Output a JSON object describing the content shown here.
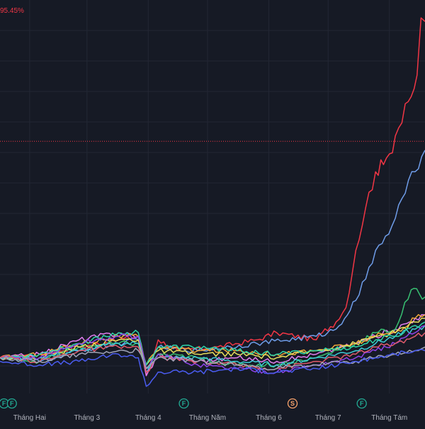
{
  "header": {
    "value_label": "95.45%"
  },
  "colors": {
    "background": "#161a25",
    "grid": "#232734",
    "reference_line": "#f23645",
    "axis_text": "#b2b5be",
    "event_green": "#22ab94",
    "event_orange": "#f7a26b"
  },
  "chart_data": {
    "type": "line",
    "title": "",
    "xlabel": "",
    "ylabel": "",
    "y_unit": "%",
    "grid": true,
    "ylim": [
      -10,
      100
    ],
    "reference_line_value": 60.5,
    "xaxis": {
      "range": [
        0,
        215
      ],
      "tick_labels": [
        {
          "label": "Tháng Hai",
          "x": 15
        },
        {
          "label": "Tháng 3",
          "x": 44
        },
        {
          "label": "Tháng 4",
          "x": 75
        },
        {
          "label": "Tháng Năm",
          "x": 105
        },
        {
          "label": "Tháng 6",
          "x": 136
        },
        {
          "label": "Tháng 7",
          "x": 166
        },
        {
          "label": "Tháng Tám",
          "x": 197
        }
      ]
    },
    "events": [
      {
        "label": "F",
        "x": 2,
        "color": "green"
      },
      {
        "label": "F",
        "x": 6,
        "color": "green"
      },
      {
        "label": "F",
        "x": 93,
        "color": "green"
      },
      {
        "label": "S",
        "x": 148,
        "color": "orange"
      },
      {
        "label": "F",
        "x": 183,
        "color": "green"
      }
    ],
    "series": [
      {
        "color": "#f23645",
        "x": [
          0,
          20,
          40,
          60,
          70,
          74,
          80,
          90,
          110,
          130,
          140,
          160,
          163,
          170,
          175,
          180,
          185,
          190,
          194,
          197,
          200,
          205,
          208,
          211,
          213,
          215
        ],
        "y": [
          0,
          1,
          3,
          5,
          6,
          -5,
          5,
          2,
          3,
          5,
          7,
          5,
          7,
          10,
          14,
          30,
          42,
          52,
          54,
          57,
          62,
          71,
          73,
          79,
          95,
          94
        ]
      },
      {
        "color": "#6f9de9",
        "x": [
          0,
          20,
          40,
          60,
          70,
          74,
          80,
          100,
          130,
          160,
          170,
          180,
          185,
          190,
          195,
          200,
          205,
          210,
          215
        ],
        "y": [
          0,
          -1,
          2,
          4,
          5,
          -4,
          3,
          2,
          4,
          6,
          8,
          16,
          22,
          30,
          34,
          39,
          46,
          52,
          58
        ]
      },
      {
        "color": "#e27df0",
        "x": [
          0,
          20,
          40,
          60,
          70,
          74,
          80,
          100,
          120,
          140,
          160,
          180,
          190,
          200,
          210,
          215
        ],
        "y": [
          0,
          1,
          5,
          7,
          6,
          -5,
          1,
          -1,
          0,
          -1,
          1,
          4,
          6,
          8,
          11,
          12
        ]
      },
      {
        "color": "#38c172",
        "x": [
          0,
          20,
          40,
          60,
          70,
          74,
          80,
          100,
          120,
          140,
          160,
          180,
          190,
          200,
          208,
          215
        ],
        "y": [
          0,
          -1,
          3,
          4,
          4,
          -3,
          1,
          0,
          -2,
          -2,
          0,
          4,
          7,
          8,
          19,
          17
        ]
      },
      {
        "color": "#f2a93b",
        "x": [
          0,
          20,
          40,
          60,
          70,
          74,
          80,
          100,
          120,
          140,
          160,
          180,
          190,
          200,
          210,
          215
        ],
        "y": [
          0,
          1,
          4,
          6,
          6,
          -2,
          3,
          2,
          2,
          1,
          2,
          4,
          6,
          7,
          11,
          12
        ]
      },
      {
        "color": "#e6e05c",
        "x": [
          0,
          20,
          40,
          60,
          70,
          74,
          80,
          100,
          120,
          140,
          160,
          180,
          190,
          200,
          210,
          215
        ],
        "y": [
          0,
          0,
          3,
          5,
          5,
          -2,
          2,
          1,
          1,
          0,
          2,
          4,
          6,
          7,
          10,
          11
        ]
      },
      {
        "color": "#3ecbd6",
        "x": [
          0,
          20,
          40,
          60,
          70,
          74,
          80,
          100,
          120,
          140,
          160,
          180,
          190,
          200,
          210,
          215
        ],
        "y": [
          0,
          0,
          2,
          4,
          4,
          -3,
          0,
          0,
          -1,
          -2,
          0,
          2,
          4,
          6,
          8,
          9
        ]
      },
      {
        "color": "#2dd4a8",
        "x": [
          0,
          20,
          40,
          60,
          70,
          74,
          80,
          100,
          120,
          140,
          160,
          180,
          190,
          200,
          210,
          215
        ],
        "y": [
          0,
          1,
          4,
          7,
          7,
          -2,
          3,
          3,
          2,
          1,
          2,
          3,
          5,
          6,
          9,
          10
        ]
      },
      {
        "color": "#8e43e8",
        "x": [
          0,
          20,
          40,
          60,
          70,
          74,
          80,
          100,
          120,
          140,
          160,
          180,
          190,
          200,
          210,
          215
        ],
        "y": [
          0,
          0,
          4,
          6,
          6,
          -3,
          1,
          -2,
          -3,
          -4,
          -2,
          0,
          2,
          4,
          7,
          9
        ]
      },
      {
        "color": "#e05a6b",
        "x": [
          0,
          20,
          40,
          60,
          70,
          74,
          80,
          100,
          120,
          140,
          160,
          180,
          190,
          200,
          210,
          215
        ],
        "y": [
          0,
          -1,
          2,
          3,
          3,
          -4,
          0,
          -1,
          -2,
          -3,
          -1,
          1,
          3,
          4,
          6,
          7
        ]
      },
      {
        "color": "#a0a4b8",
        "x": [
          0,
          20,
          40,
          60,
          70,
          74,
          80,
          100,
          120,
          140,
          160,
          180,
          190,
          200,
          210,
          215
        ],
        "y": [
          0,
          -1,
          1,
          2,
          2,
          -3,
          0,
          -1,
          -2,
          -3,
          -2,
          -1,
          0,
          1,
          2,
          3
        ]
      },
      {
        "color": "#4a5cf0",
        "x": [
          0,
          20,
          40,
          60,
          70,
          74,
          80,
          100,
          120,
          140,
          160,
          180,
          190,
          200,
          210,
          215
        ],
        "y": [
          -1,
          -2,
          -1,
          1,
          0,
          -8,
          -4,
          -4,
          -3,
          -4,
          -3,
          -1,
          0,
          1,
          2,
          2
        ]
      }
    ]
  }
}
